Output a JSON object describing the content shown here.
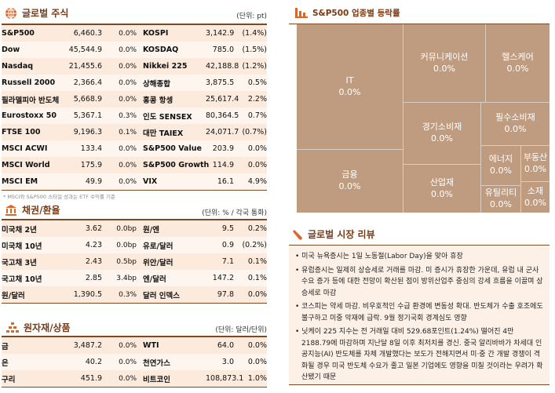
{
  "global_stocks": {
    "title": "글로벌 주식",
    "unit": "(단위: pt)",
    "footnote": "* MSCI와 S&P500 스타일 성과는 ETF 수익률 기준",
    "rows": [
      [
        "S&P500",
        "6,460.3",
        "0.0%",
        "KOSPI",
        "3,142.9",
        "(1.4%)"
      ],
      [
        "Dow",
        "45,544.9",
        "0.0%",
        "KOSDAQ",
        "785.0",
        "(1.5%)"
      ],
      [
        "Nasdaq",
        "21,455.6",
        "0.0%",
        "Nikkei 225",
        "42,188.8",
        "(1.2%)"
      ],
      [
        "Russell 2000",
        "2,366.4",
        "0.0%",
        "상해종합",
        "3,875.5",
        "0.5%"
      ],
      [
        "필라델피아 반도체",
        "5,668.9",
        "0.0%",
        "홍콩 항셍",
        "25,617.4",
        "2.2%"
      ],
      [
        "Eurostoxx 50",
        "5,367.1",
        "0.3%",
        "인도 SENSEX",
        "80,364.5",
        "0.7%"
      ],
      [
        "FTSE 100",
        "9,196.3",
        "0.1%",
        "대만 TAIEX",
        "24,071.7",
        "(0.7%)"
      ],
      [
        "MSCI ACWI",
        "133.4",
        "0.0%",
        "S&P500 Value",
        "203.9",
        "0.0%"
      ],
      [
        "MSCI World",
        "175.9",
        "0.0%",
        "S&P500 Growth",
        "114.9",
        "0.0%"
      ],
      [
        "MSCI EM",
        "49.9",
        "0.0%",
        "VIX",
        "16.1",
        "4.9%"
      ]
    ]
  },
  "bonds_fx": {
    "title": "채권/환율",
    "unit": "(단위: % / 각국 통화)",
    "rows": [
      [
        "미국채 2년",
        "3.62",
        "0.0bp",
        "원/엔",
        "9.5",
        "0.2%"
      ],
      [
        "미국채 10년",
        "4.23",
        "0.0bp",
        "유로/달러",
        "0.9",
        "(0.2%)"
      ],
      [
        "국고채 3년",
        "2.43",
        "0.5bp",
        "위안/달러",
        "7.1",
        "0.1%"
      ],
      [
        "국고채 10년",
        "2.85",
        "3.4bp",
        "엔/달러",
        "147.2",
        "0.1%"
      ],
      [
        "원/달러",
        "1,390.5",
        "0.3%",
        "달러 인덱스",
        "97.8",
        "0.0%"
      ]
    ]
  },
  "commodities": {
    "title": "원자재/상품",
    "unit": "(단위: 달러/단위)",
    "rows": [
      [
        "금",
        "3,487.2",
        "0.0%",
        "WTI",
        "64.0",
        "0.0%"
      ],
      [
        "은",
        "40.2",
        "0.0%",
        "천연가스",
        "3.0",
        "0.0%"
      ],
      [
        "구리",
        "451.9",
        "0.0%",
        "비트코인",
        "108,873.1",
        "1.0%"
      ]
    ]
  },
  "sector": {
    "title": "S&P500 업종별 등락률",
    "color": "#bf9c7f",
    "cells": [
      {
        "name": "IT",
        "value": "0.0%"
      },
      {
        "name": "금융",
        "value": "0.0%"
      },
      {
        "name": "커뮤니케이션",
        "value": "0.0%"
      },
      {
        "name": "헬스케어",
        "value": "0.0%"
      },
      {
        "name": "경기소비재",
        "value": "0.0%"
      },
      {
        "name": "산업재",
        "value": "0.0%"
      },
      {
        "name": "필수소비재",
        "value": "0.0%"
      },
      {
        "name": "에너지",
        "value": "0.0%"
      },
      {
        "name": "부동산",
        "value": "0.0%"
      },
      {
        "name": "유틸리티",
        "value": "0.0%"
      },
      {
        "name": "소재",
        "value": "0.0%"
      }
    ]
  },
  "review": {
    "title": "글로벌 시장 리뷰",
    "items": [
      "• 미국 뉴욕증시는 1일 노동절(Labor Day)을 맞아 휴장",
      "• 유럽증시는 일제히 상승세로 거래를 마감. 미 증시가 휴장한 가운데, 유럽 내 군사 수요 증가 등에 대한 전망이 확산된 점이 방위산업주 중심의 강세 흐름을 이끌며 상승세로 마감",
      "• 코스피는 약세 마감. 비우호적인 수급 환경에 변동성 확대. 반도체가 수출 호조에도 불구하고 미중 악재에 급락. 9월 정기국회 경계심도 영향",
      "• 닛케이 225 지수는 전 거래일 대비 529.68포인트(1.24%) 떨어진 4만 2188.79에 마감하며 지난달 8일 이후 최저치를 경신. 중국 알리바바가 차세대 인공지능(AI) 반도체를 자체 개발했다는 보도가 전해지면서 미·중 간 개발 경쟁이 격화될 경우 미국 반도체 수요가 줄고 일본 기업에도 영향을 미칠 것이라는 우려가 확산됐기 때문"
    ]
  }
}
